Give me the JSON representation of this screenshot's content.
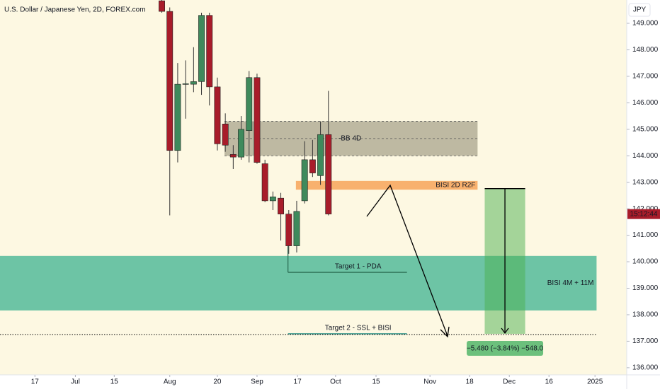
{
  "chart_data": {
    "type": "candlestick",
    "title": "U.S. Dollar / Japanese Yen, 2D, FOREX.com",
    "currency": "JPY",
    "x": [
      0,
      1,
      2,
      3,
      4,
      5,
      6,
      7,
      8,
      9,
      10,
      11,
      12,
      13,
      14,
      15,
      16,
      17,
      18,
      19,
      20,
      21
    ],
    "open": [
      149.85,
      149.45,
      144.2,
      146.7,
      146.7,
      146.8,
      149.3,
      146.6,
      145.2,
      144.05,
      143.95,
      144.95,
      146.95,
      143.7,
      142.3,
      142.4,
      141.8,
      140.6,
      142.3,
      143.85,
      143.25,
      144.8
    ],
    "high": [
      149.9,
      149.6,
      147.5,
      147.6,
      148.1,
      149.4,
      149.4,
      146.95,
      145.6,
      144.4,
      145.5,
      147.2,
      147.1,
      143.85,
      142.65,
      142.6,
      141.95,
      142.3,
      144.55,
      144.6,
      145.3,
      146.45
    ],
    "low": [
      149.4,
      141.75,
      143.75,
      145.4,
      146.4,
      146.3,
      145.9,
      144.2,
      144.15,
      143.5,
      143.85,
      143.75,
      143.7,
      142.25,
      141.95,
      140.8,
      140.3,
      140.35,
      142.2,
      143.2,
      142.9,
      141.75
    ],
    "close": [
      149.45,
      144.2,
      146.7,
      146.72,
      146.8,
      149.3,
      146.6,
      144.45,
      144.4,
      143.95,
      145.0,
      146.95,
      143.75,
      142.3,
      142.45,
      141.8,
      140.6,
      141.9,
      143.85,
      143.35,
      144.8,
      141.8
    ],
    "up_color": "#3f8a5c",
    "down_color": "#a81c2a",
    "background": "#fdf8e2",
    "xlim": [
      -20.4,
      58.6
    ],
    "xticks": [
      {
        "value": -16,
        "label": "17"
      },
      {
        "value": -10.9,
        "label": "Jul"
      },
      {
        "value": -6,
        "label": "15"
      },
      {
        "value": 1,
        "label": "Aug"
      },
      {
        "value": 7,
        "label": "20"
      },
      {
        "value": 12,
        "label": "Sep"
      },
      {
        "value": 17.1,
        "label": "17"
      },
      {
        "value": 21.9,
        "label": "Oct"
      },
      {
        "value": 27,
        "label": "15"
      },
      {
        "value": 33.8,
        "label": "Nov"
      },
      {
        "value": 38.8,
        "label": "18"
      },
      {
        "value": 43.8,
        "label": "Dec"
      },
      {
        "value": 48.8,
        "label": "16"
      },
      {
        "value": 54.6,
        "label": "2025"
      }
    ],
    "ylim": [
      135.73,
      149.88
    ],
    "yticks": [
      {
        "value": 136,
        "label": "136.000"
      },
      {
        "value": 137,
        "label": "137.000"
      },
      {
        "value": 138,
        "label": "138.000"
      },
      {
        "value": 139,
        "label": "139.000"
      },
      {
        "value": 140,
        "label": "140.000"
      },
      {
        "value": 141,
        "label": "141.000"
      },
      {
        "value": 142,
        "label": "142.000"
      },
      {
        "value": 143,
        "label": "143.000"
      },
      {
        "value": 144,
        "label": "144.000"
      },
      {
        "value": 145,
        "label": "145.000"
      },
      {
        "value": 146,
        "label": "146.000"
      },
      {
        "value": 147,
        "label": "147.000"
      },
      {
        "value": 148,
        "label": "148.000"
      },
      {
        "value": 149,
        "label": "149.000"
      }
    ],
    "zones": [
      {
        "label": "-BB 4D",
        "top": 145.3,
        "bottom": 144.0,
        "x_start": 7.9,
        "x_end": 39.8,
        "color": "#a8a48c"
      },
      {
        "label": "BISI 2D R2F",
        "top": 143.05,
        "bottom": 142.72,
        "x_start": 16.9,
        "x_end": 39.8,
        "color": "#f7a862"
      },
      {
        "label": "BISI 4M + 11M",
        "top": 140.22,
        "bottom": 138.16,
        "x_start": -20.4,
        "x_end": 54.8,
        "color": "#5dbe9f"
      }
    ],
    "targets": [
      {
        "label": "Target 1 - PDA",
        "price": 139.6,
        "x_start": 15.9,
        "x_end": 30.9
      },
      {
        "label": "Target 2 - SSL + BISI",
        "price": 137.28,
        "x_start": 15.9,
        "x_end": 30.9
      }
    ],
    "measure": {
      "label": "−5.480 (−3.84%) −548.0",
      "top": 142.76,
      "bottom": 137.28,
      "x_start": 40.7,
      "x_end": 45.8
    },
    "last_price": 141.8,
    "countdown": "15:12:44"
  }
}
